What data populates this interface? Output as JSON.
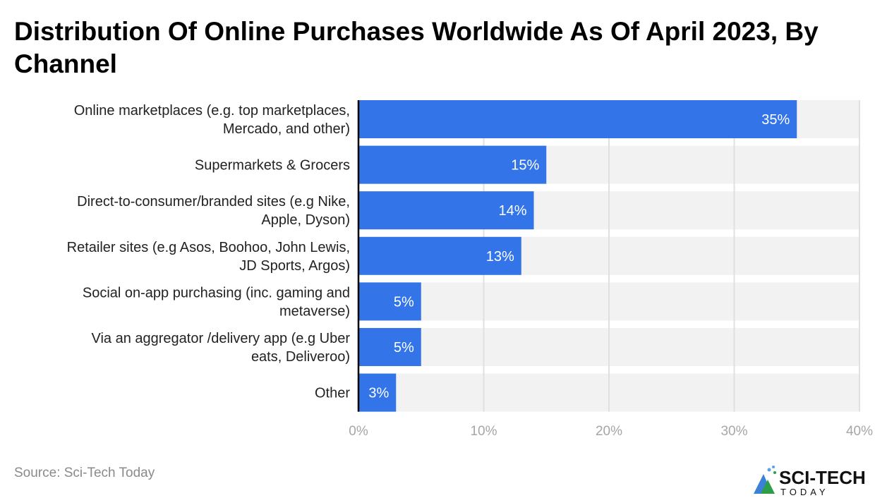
{
  "title": "Distribution Of Online Purchases Worldwide As Of April 2023, By Channel",
  "source": "Source: Sci-Tech Today",
  "logo": {
    "text": "SCI-TECH",
    "subtext": "TODAY"
  },
  "colors": {
    "bar": "#3375e8",
    "track": "#f2f2f2",
    "grid": "#e0e0e0",
    "tick": "#a6a6a6"
  },
  "chart_data": {
    "type": "bar",
    "orientation": "horizontal",
    "categories": [
      [
        "Online marketplaces (e.g. top marketplaces,",
        "Mercado, and other)"
      ],
      [
        "Supermarkets & Grocers"
      ],
      [
        "Direct-to-consumer/branded sites (e.g Nike,",
        "Apple, Dyson)"
      ],
      [
        "Retailer sites (e.g Asos, Boohoo, John Lewis,",
        "JD Sports, Argos)"
      ],
      [
        "Social on-app purchasing (inc. gaming and",
        "metaverse)"
      ],
      [
        "Via an aggregator /delivery app (e.g Uber",
        "eats, Deliveroo)"
      ],
      [
        "Other"
      ]
    ],
    "values": [
      35,
      15,
      14,
      13,
      5,
      5,
      3
    ],
    "data_labels": [
      "35%",
      "15%",
      "14%",
      "13%",
      "5%",
      "5%",
      "3%"
    ],
    "xlim": [
      0,
      40
    ],
    "xticks": [
      0,
      10,
      20,
      30,
      40
    ],
    "xtick_labels": [
      "0%",
      "10%",
      "20%",
      "30%",
      "40%"
    ],
    "grid": true
  }
}
